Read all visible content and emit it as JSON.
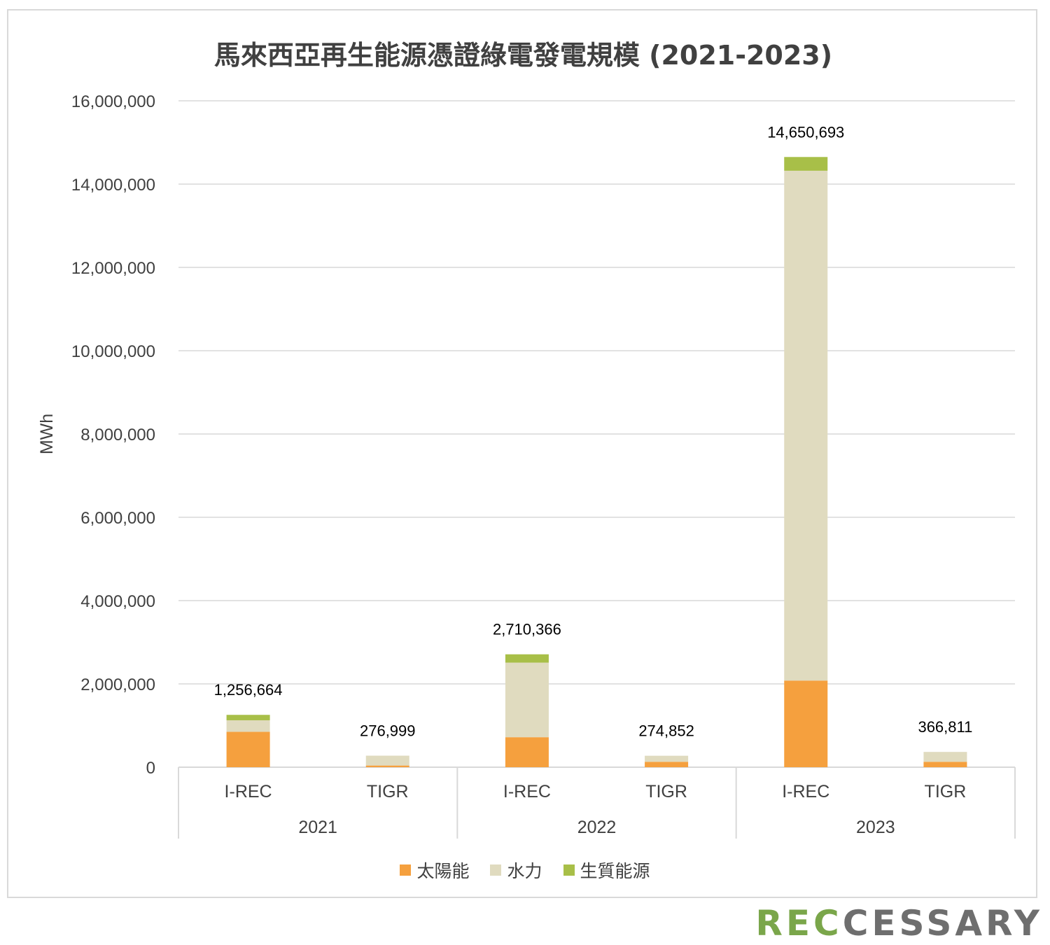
{
  "chart_data": {
    "type": "bar",
    "stacked": true,
    "title": "馬來西亞再生能源憑證綠電發電規模 (2021-2023)",
    "ylabel": "MWh",
    "ylim": [
      0,
      16000000
    ],
    "yticks": [
      "0",
      "2,000,000",
      "4,000,000",
      "6,000,000",
      "8,000,000",
      "10,000,000",
      "12,000,000",
      "14,000,000",
      "16,000,000"
    ],
    "groups": [
      "2021",
      "2022",
      "2023"
    ],
    "categories": [
      "I-REC",
      "TIGR",
      "I-REC",
      "TIGR",
      "I-REC",
      "TIGR"
    ],
    "category_groups": [
      "2021",
      "2021",
      "2022",
      "2022",
      "2023",
      "2023"
    ],
    "series": [
      {
        "name": "太陽能",
        "color": "#f5a03e",
        "values": [
          850000,
          40000,
          720000,
          130000,
          2080000,
          130000
        ]
      },
      {
        "name": "水力",
        "color": "#e0dbbf",
        "values": [
          276664,
          236999,
          1790366,
          144852,
          12240693,
          236811
        ]
      },
      {
        "name": "生質能源",
        "color": "#a8bf48",
        "values": [
          130000,
          0,
          200000,
          0,
          330000,
          0
        ]
      }
    ],
    "totals": [
      1256664,
      276999,
      2710366,
      274852,
      14650693,
      366811
    ],
    "total_labels": [
      "1,256,664",
      "276,999",
      "2,710,366",
      "274,852",
      "14,650,693",
      "366,811"
    ],
    "grid": true,
    "legend_position": "bottom"
  },
  "brand": {
    "part1": "REC",
    "part2": "CESSARY"
  }
}
